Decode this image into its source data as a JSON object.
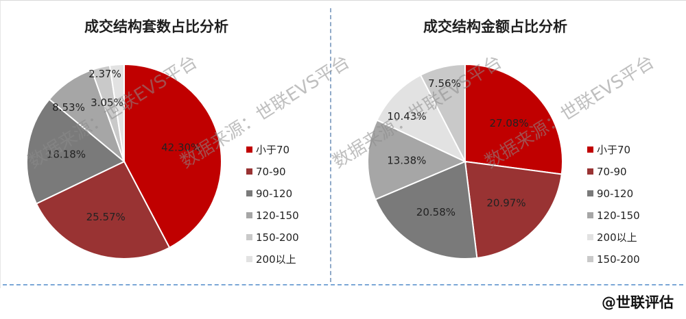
{
  "colors": {
    "小于70": "#c00000",
    "70-90": "#993333",
    "90-120": "#7a7a7a",
    "120-150": "#a6a6a6",
    "150-200": "#c9c9c9",
    "200以上": "#e2e2e2"
  },
  "watermark": "数据来源：世联EVS平台",
  "credit": "@世联评估",
  "chart_data": [
    {
      "type": "pie",
      "title": "成交结构套数占比分析",
      "slices": [
        {
          "label": "小于70",
          "value": 42.3,
          "display": "42.30%"
        },
        {
          "label": "70-90",
          "value": 25.57,
          "display": "25.57%"
        },
        {
          "label": "90-120",
          "value": 18.18,
          "display": "18.18%"
        },
        {
          "label": "120-150",
          "value": 8.53,
          "display": "8.53%"
        },
        {
          "label": "150-200",
          "value": 3.05,
          "display": "3.05%"
        },
        {
          "label": "200以上",
          "value": 2.37,
          "display": "2.37%"
        }
      ],
      "legend": [
        "小于70",
        "70-90",
        "90-120",
        "120-150",
        "150-200",
        "200以上"
      ],
      "legend_position": "right"
    },
    {
      "type": "pie",
      "title": "成交结构金额占比分析",
      "slices": [
        {
          "label": "小于70",
          "value": 27.08,
          "display": "27.08%"
        },
        {
          "label": "70-90",
          "value": 20.97,
          "display": "20.97%"
        },
        {
          "label": "90-120",
          "value": 20.58,
          "display": "20.58%"
        },
        {
          "label": "120-150",
          "value": 13.38,
          "display": "13.38%"
        },
        {
          "label": "200以上",
          "value": 10.43,
          "display": "10.43%"
        },
        {
          "label": "150-200",
          "value": 7.56,
          "display": "7.56%"
        }
      ],
      "legend": [
        "小于70",
        "70-90",
        "90-120",
        "120-150",
        "200以上",
        "150-200"
      ],
      "legend_position": "right"
    }
  ]
}
